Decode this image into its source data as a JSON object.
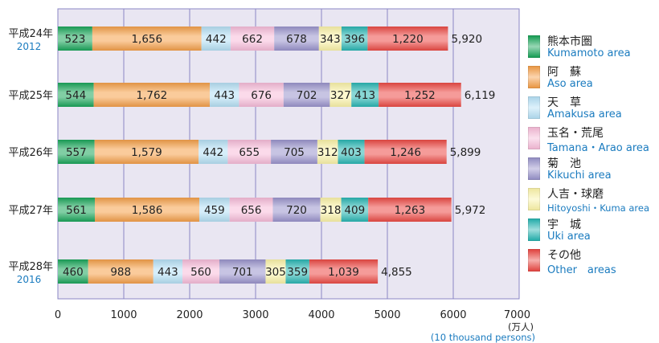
{
  "chart_data": {
    "type": "bar",
    "orientation": "horizontal",
    "stacked": true,
    "categories": [
      {
        "jp": "平成24年",
        "en": "2012"
      },
      {
        "jp": "平成25年",
        "en": ""
      },
      {
        "jp": "平成26年",
        "en": ""
      },
      {
        "jp": "平成27年",
        "en": ""
      },
      {
        "jp": "平成28年",
        "en": "2016"
      }
    ],
    "series": [
      {
        "name": "熊本市圏",
        "name_en": "Kumamoto area",
        "color": "#1aa55a",
        "values": [
          523,
          544,
          557,
          561,
          460
        ]
      },
      {
        "name": "阿　蘇",
        "name_en": "Aso area",
        "color": "#f5a04a",
        "values": [
          1656,
          1762,
          1579,
          1586,
          988
        ]
      },
      {
        "name": "天　草",
        "name_en": "Amakusa area",
        "color": "#b5e0f5",
        "values": [
          442,
          443,
          442,
          459,
          443
        ]
      },
      {
        "name": "玉名・荒尾",
        "name_en": "Tamana・Arao area",
        "color": "#f7bcd9",
        "values": [
          662,
          676,
          655,
          656,
          560
        ]
      },
      {
        "name": "菊　池",
        "name_en": "Kikuchi area",
        "color": "#9a94cc",
        "values": [
          678,
          702,
          705,
          720,
          701
        ]
      },
      {
        "name": "人吉・球磨",
        "name_en": "Hitoyoshi・Kuma area",
        "color": "#fbf3a8",
        "values": [
          343,
          327,
          312,
          318,
          305
        ]
      },
      {
        "name": "宇　城",
        "name_en": "Uki area",
        "color": "#29b6b3",
        "values": [
          396,
          413,
          403,
          409,
          359
        ]
      },
      {
        "name": "その他",
        "name_en": "Other　areas",
        "color": "#ec4a45",
        "values": [
          1220,
          1252,
          1246,
          1263,
          1039
        ]
      }
    ],
    "totals": [
      "5,920",
      "6,119",
      "5,899",
      "5,972",
      "4,855"
    ],
    "xlim": [
      0,
      7000
    ],
    "xticks": [
      0,
      1000,
      2000,
      3000,
      4000,
      5000,
      6000,
      7000
    ],
    "unit": "(万人)",
    "unit_en": "(10 thousand persons)",
    "grid": true,
    "legend_position": "right",
    "plot_background": "#e9e6f2",
    "grid_color": "#8a86c4"
  }
}
